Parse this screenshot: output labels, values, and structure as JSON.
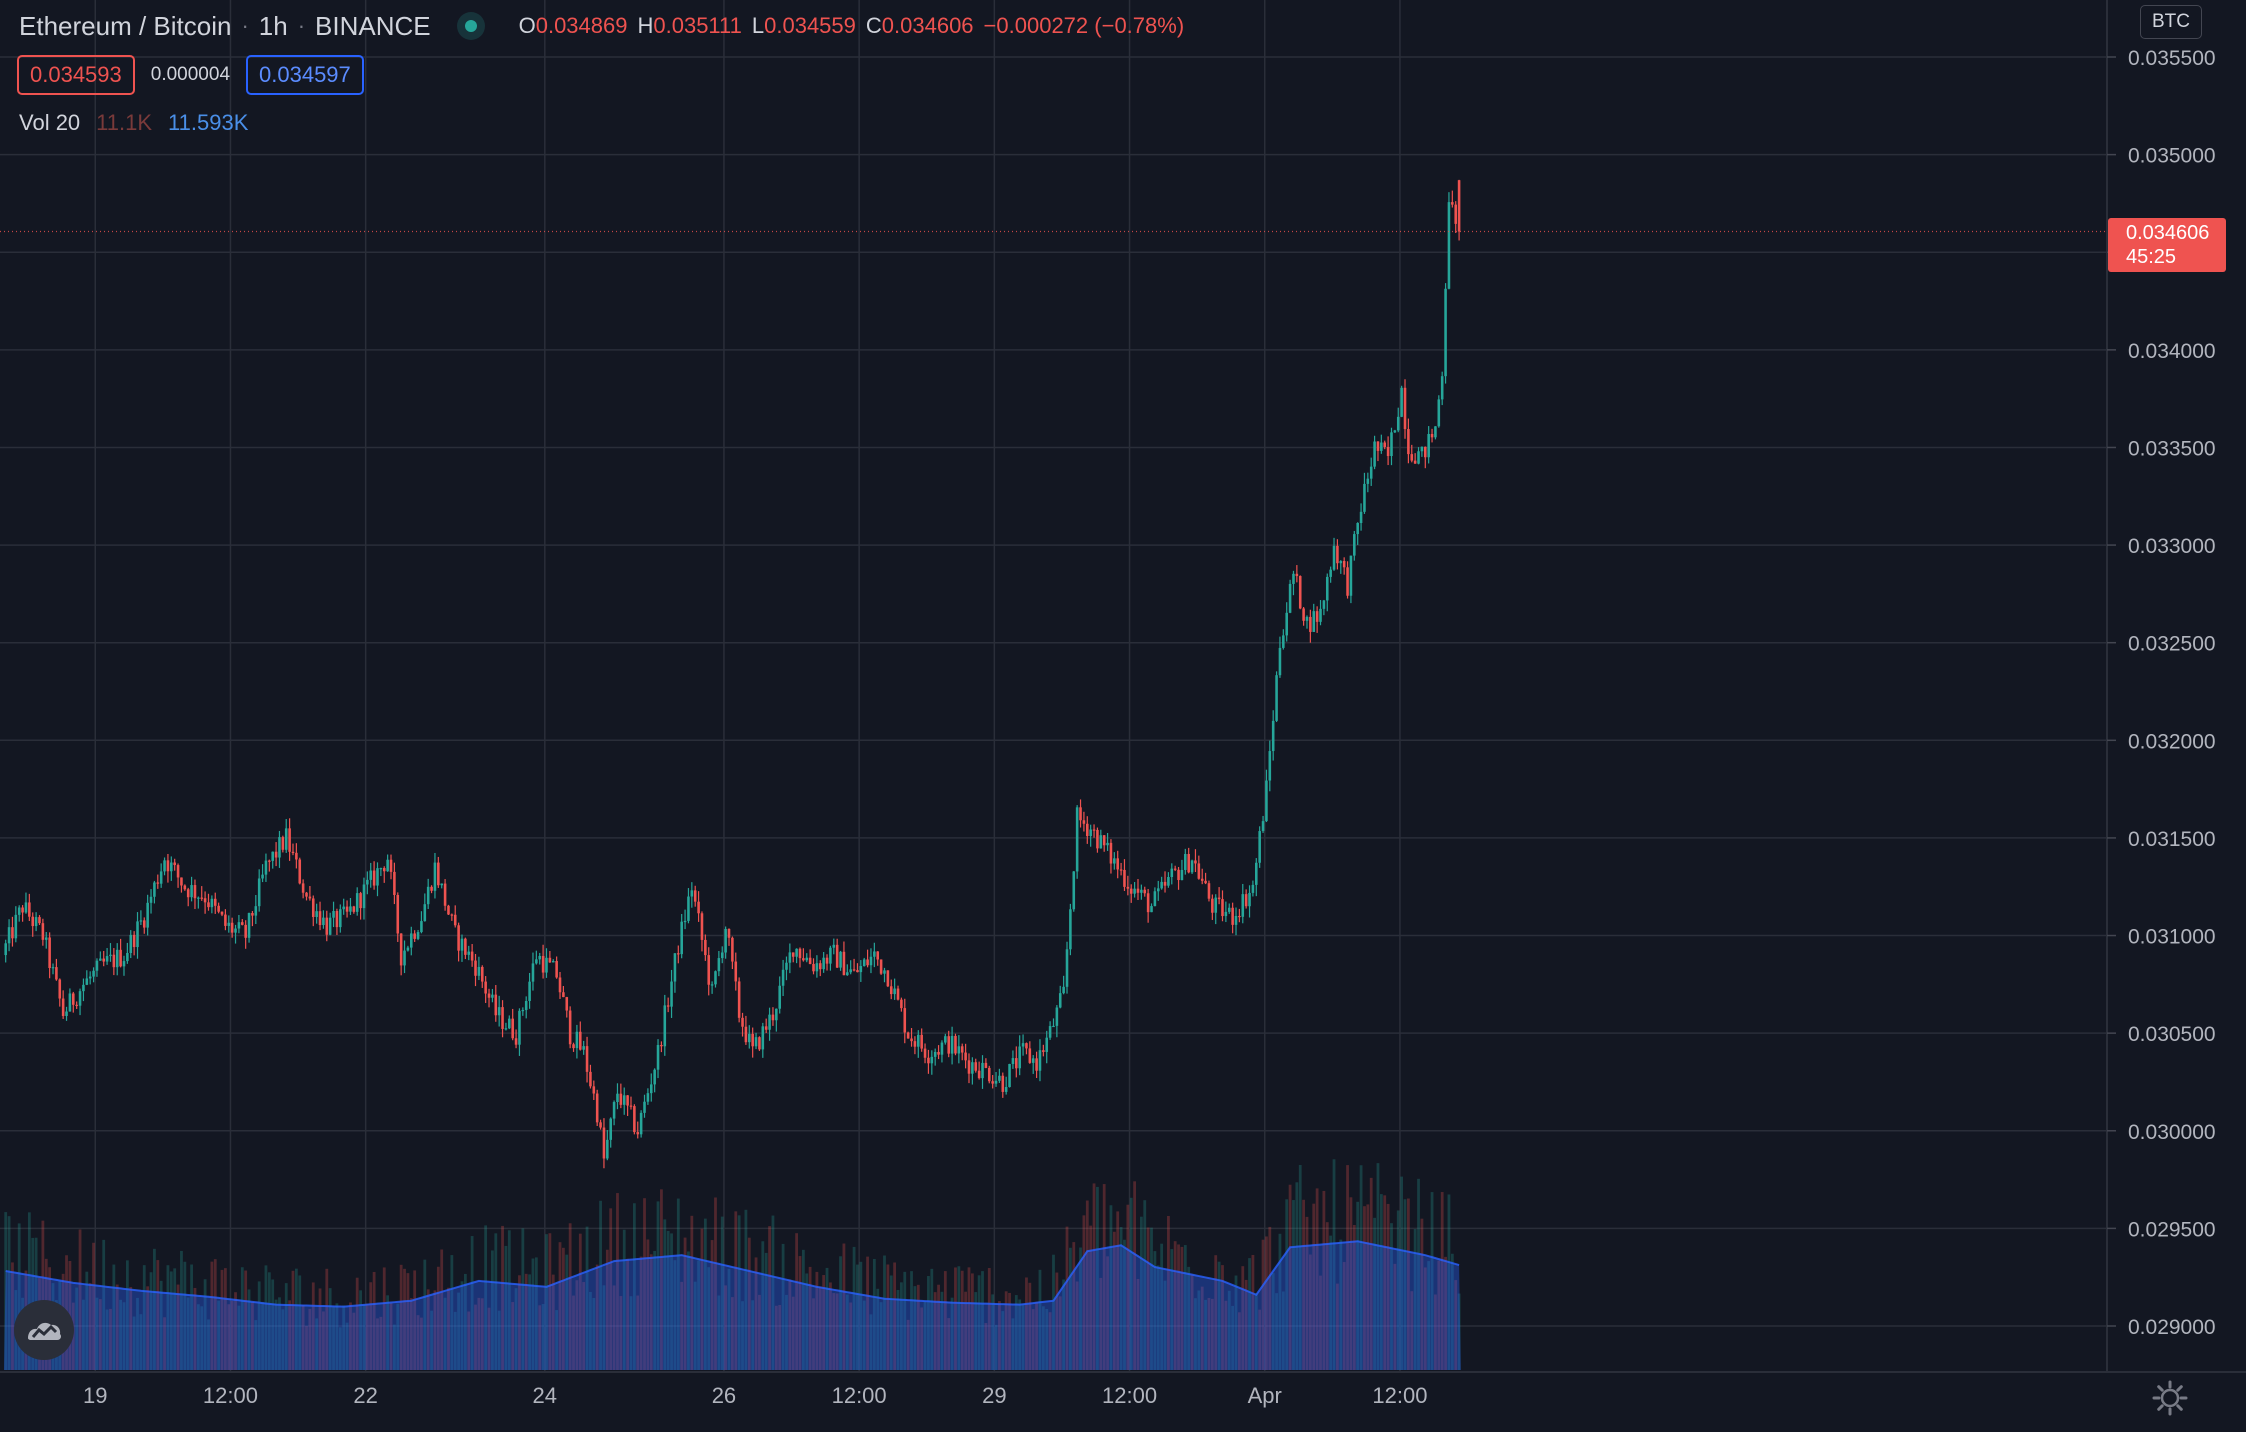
{
  "header": {
    "symbol": "Ethereum / Bitcoin",
    "interval": "1h",
    "exchange": "BINANCE",
    "ohlc": {
      "o_key": "O",
      "o": "0.034869",
      "h_key": "H",
      "h": "0.035111",
      "l_key": "L",
      "l": "0.034559",
      "c_key": "C",
      "c": "0.034606",
      "change": "−0.000272 (−0.78%)"
    },
    "bid": "0.034593",
    "spread": "0.000004",
    "ask": "0.034597"
  },
  "volume_legend": {
    "name": "Vol 20",
    "value": "11.1K",
    "ma": "11.593K"
  },
  "price_label": {
    "price": "0.034606",
    "countdown": "45:25"
  },
  "currency_button": "BTC",
  "colors": {
    "up": "#26a69a",
    "down": "#ef5350",
    "background": "#131722",
    "grid": "#2a2e39",
    "volume_ma": "#2962ff"
  },
  "chart_data": {
    "type": "candlestick",
    "pair": "ETH/BTC",
    "ylim": [
      0.0288,
      0.0358
    ],
    "y_ticks": [
      "0.035500",
      "0.035000",
      "0.034500",
      "0.034000",
      "0.033500",
      "0.033000",
      "0.032500",
      "0.032000",
      "0.031500",
      "0.031000",
      "0.030500",
      "0.030000",
      "0.029500",
      "0.029000"
    ],
    "x_ticks": [
      "19",
      "12:00",
      "22",
      "24",
      "26",
      "12:00",
      "29",
      "12:00",
      "Apr",
      "12:00"
    ],
    "current_price": 0.034606,
    "close_path": [
      [
        0,
        0.0309
      ],
      [
        6,
        0.03115
      ],
      [
        12,
        0.031
      ],
      [
        18,
        0.0306
      ],
      [
        24,
        0.03075
      ],
      [
        30,
        0.03085
      ],
      [
        36,
        0.0309
      ],
      [
        42,
        0.0311
      ],
      [
        48,
        0.0314
      ],
      [
        54,
        0.03125
      ],
      [
        60,
        0.0312
      ],
      [
        66,
        0.03105
      ],
      [
        72,
        0.031
      ],
      [
        78,
        0.03135
      ],
      [
        84,
        0.0315
      ],
      [
        90,
        0.0312
      ],
      [
        96,
        0.03105
      ],
      [
        102,
        0.0311
      ],
      [
        108,
        0.03125
      ],
      [
        114,
        0.0314
      ],
      [
        118,
        0.0309
      ],
      [
        124,
        0.0311
      ],
      [
        128,
        0.03135
      ],
      [
        134,
        0.031
      ],
      [
        140,
        0.03085
      ],
      [
        146,
        0.0306
      ],
      [
        152,
        0.0305
      ],
      [
        158,
        0.0309
      ],
      [
        164,
        0.0308
      ],
      [
        168,
        0.0305
      ],
      [
        172,
        0.0304
      ],
      [
        176,
        0.0301
      ],
      [
        178,
        0.02985
      ],
      [
        182,
        0.0302
      ],
      [
        188,
        0.03
      ],
      [
        194,
        0.0304
      ],
      [
        200,
        0.03095
      ],
      [
        204,
        0.03125
      ],
      [
        210,
        0.0307
      ],
      [
        214,
        0.03105
      ],
      [
        218,
        0.0306
      ],
      [
        222,
        0.0304
      ],
      [
        228,
        0.0306
      ],
      [
        234,
        0.03095
      ],
      [
        240,
        0.03085
      ],
      [
        246,
        0.0309
      ],
      [
        252,
        0.0308
      ],
      [
        258,
        0.0309
      ],
      [
        262,
        0.0308
      ],
      [
        268,
        0.0305
      ],
      [
        274,
        0.0304
      ],
      [
        280,
        0.03045
      ],
      [
        286,
        0.03035
      ],
      [
        292,
        0.0303
      ],
      [
        296,
        0.03025
      ],
      [
        302,
        0.0304
      ],
      [
        306,
        0.03035
      ],
      [
        310,
        0.0305
      ],
      [
        314,
        0.0307
      ],
      [
        318,
        0.0316
      ],
      [
        322,
        0.03155
      ],
      [
        328,
        0.0314
      ],
      [
        334,
        0.03125
      ],
      [
        340,
        0.03115
      ],
      [
        346,
        0.0313
      ],
      [
        352,
        0.0314
      ],
      [
        358,
        0.03115
      ],
      [
        364,
        0.0311
      ],
      [
        370,
        0.03125
      ],
      [
        374,
        0.03175
      ],
      [
        378,
        0.0325
      ],
      [
        382,
        0.03285
      ],
      [
        386,
        0.0326
      ],
      [
        390,
        0.03265
      ],
      [
        394,
        0.033
      ],
      [
        398,
        0.0328
      ],
      [
        402,
        0.0332
      ],
      [
        406,
        0.0335
      ],
      [
        410,
        0.03345
      ],
      [
        414,
        0.0338
      ],
      [
        416,
        0.0335
      ],
      [
        420,
        0.03345
      ],
      [
        424,
        0.0336
      ],
      [
        426,
        0.0339
      ],
      [
        428,
        0.0348
      ],
      [
        430,
        0.034606
      ]
    ],
    "volume_ma_path": [
      [
        0,
        0.5
      ],
      [
        20,
        0.44
      ],
      [
        40,
        0.4
      ],
      [
        60,
        0.37
      ],
      [
        80,
        0.33
      ],
      [
        100,
        0.32
      ],
      [
        120,
        0.35
      ],
      [
        140,
        0.45
      ],
      [
        160,
        0.42
      ],
      [
        180,
        0.55
      ],
      [
        200,
        0.58
      ],
      [
        220,
        0.5
      ],
      [
        240,
        0.42
      ],
      [
        260,
        0.36
      ],
      [
        280,
        0.34
      ],
      [
        300,
        0.33
      ],
      [
        310,
        0.35
      ],
      [
        320,
        0.6
      ],
      [
        330,
        0.63
      ],
      [
        340,
        0.52
      ],
      [
        360,
        0.45
      ],
      [
        370,
        0.38
      ],
      [
        380,
        0.62
      ],
      [
        400,
        0.65
      ],
      [
        420,
        0.58
      ],
      [
        430,
        0.53
      ]
    ]
  }
}
